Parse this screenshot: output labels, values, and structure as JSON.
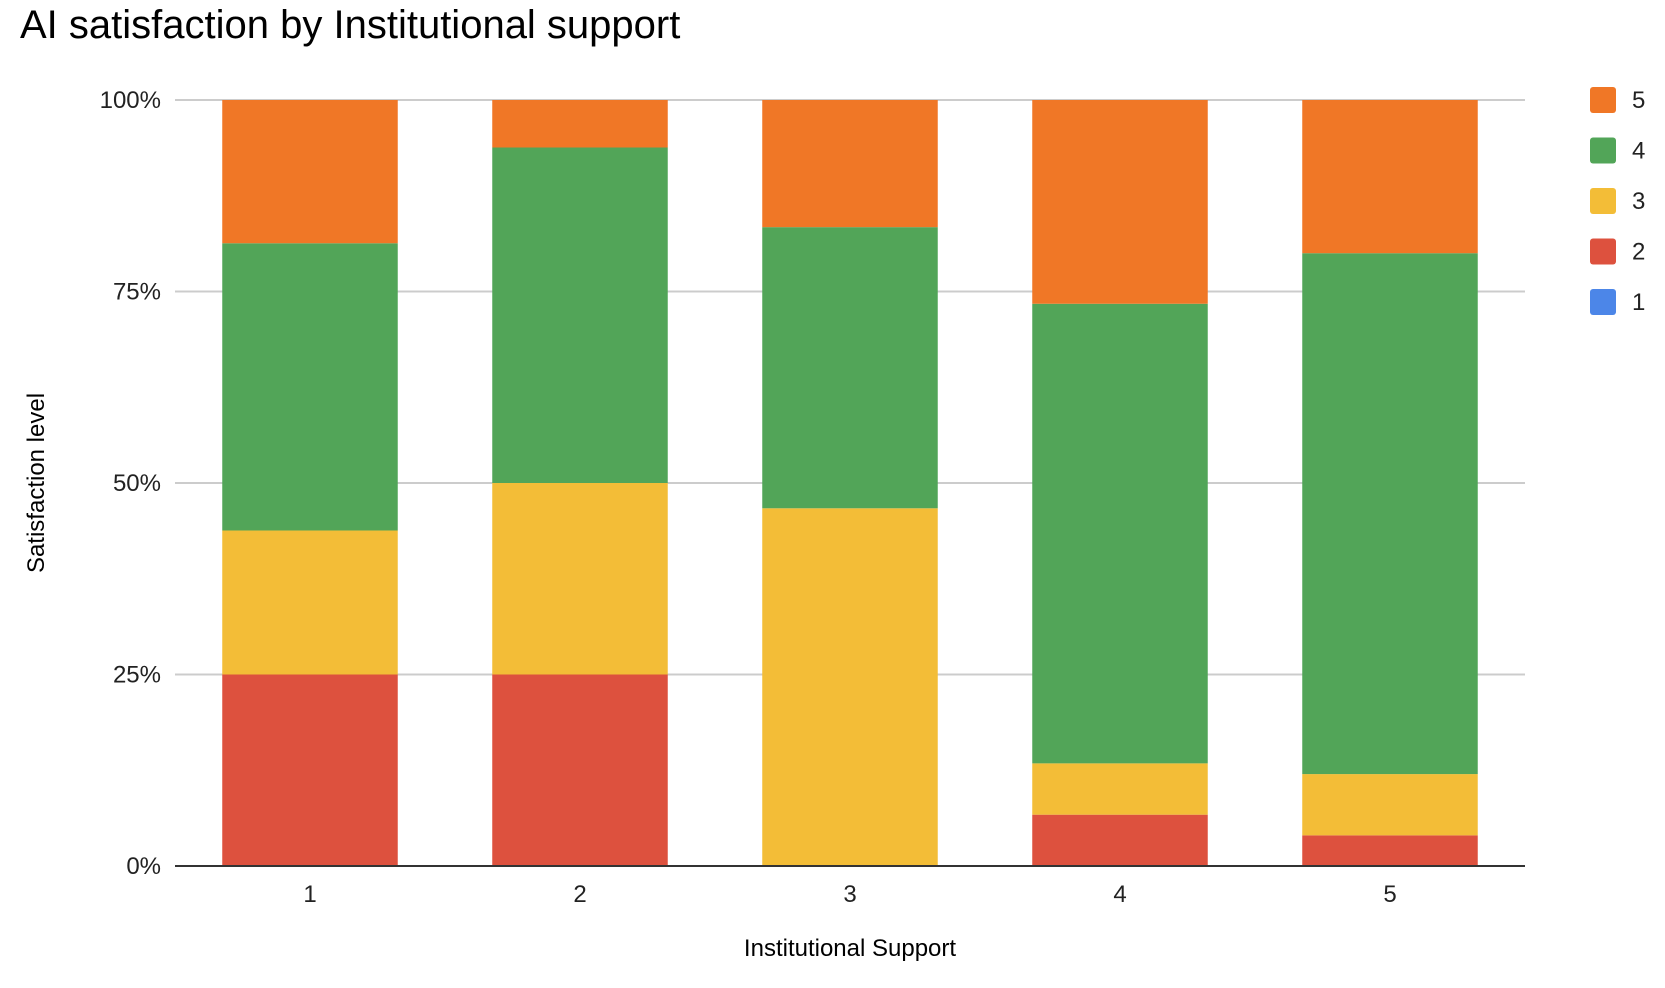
{
  "chart_data": {
    "type": "bar",
    "stacked": "percent",
    "title": "AI satisfaction by Institutional support",
    "xlabel": "Institutional Support",
    "ylabel": "Satisfaction level",
    "categories": [
      "1",
      "2",
      "3",
      "4",
      "5"
    ],
    "yticks": [
      "0%",
      "25%",
      "50%",
      "75%",
      "100%"
    ],
    "ylim": [
      0,
      100
    ],
    "grid": true,
    "legend_position": "right",
    "series": [
      {
        "name": "1",
        "color": "#4C86E8",
        "values": [
          0,
          0,
          0,
          0,
          0
        ]
      },
      {
        "name": "2",
        "color": "#DD513E",
        "values": [
          25,
          25,
          0,
          6.7,
          4
        ]
      },
      {
        "name": "3",
        "color": "#F3BD37",
        "values": [
          18.8,
          25,
          46.7,
          6.7,
          8
        ]
      },
      {
        "name": "4",
        "color": "#52A558",
        "values": [
          37.5,
          43.8,
          36.7,
          60,
          68
        ]
      },
      {
        "name": "5",
        "color": "#F07726",
        "values": [
          18.7,
          6.2,
          16.6,
          26.6,
          20
        ]
      }
    ]
  }
}
